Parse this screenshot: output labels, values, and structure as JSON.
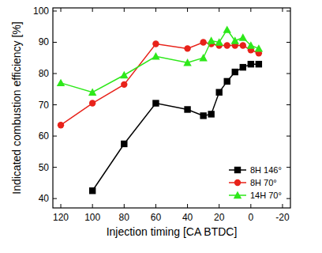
{
  "chart_data": {
    "type": "line",
    "x_label": "Injection timing [CA BTDC]",
    "y_label": "Indicated combustion efficiency [%]",
    "xlim": [
      125,
      -25
    ],
    "xticks": [
      120,
      100,
      80,
      60,
      40,
      20,
      0,
      -20
    ],
    "ylim": [
      37,
      101
    ],
    "yticks": [
      40,
      50,
      60,
      70,
      80,
      90,
      100
    ],
    "legend": "lower right",
    "series": [
      {
        "name": "8H 146°",
        "color": "#000000",
        "marker": "square",
        "x": [
          100,
          80,
          60,
          40,
          30,
          25,
          20,
          15,
          10,
          5,
          0,
          -5
        ],
        "values": [
          42.5,
          57.5,
          70.5,
          68.5,
          66.5,
          67,
          74,
          77.5,
          80.5,
          82,
          83,
          83
        ]
      },
      {
        "name": "8H 70°",
        "color": "#e8221a",
        "marker": "circle",
        "x": [
          120,
          100,
          80,
          60,
          40,
          30,
          25,
          20,
          15,
          10,
          5,
          0,
          -5
        ],
        "values": [
          63.5,
          70.5,
          76.5,
          89.5,
          88,
          90,
          89.5,
          89,
          89,
          89,
          89,
          87.5,
          86.5
        ]
      },
      {
        "name": "14H 70°",
        "color": "#2ee81a",
        "marker": "triangle",
        "x": [
          120,
          100,
          80,
          60,
          40,
          30,
          25,
          20,
          15,
          10,
          5,
          0,
          -5
        ],
        "values": [
          77,
          74,
          79.5,
          85.5,
          83.5,
          85,
          90.5,
          90,
          94,
          90.5,
          91.5,
          89,
          88
        ]
      }
    ]
  }
}
